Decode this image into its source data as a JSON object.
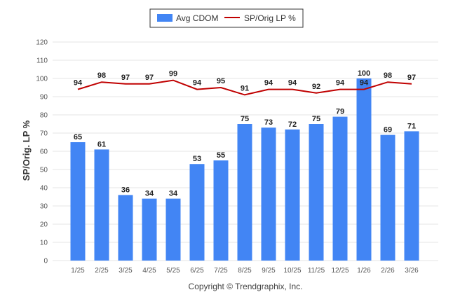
{
  "chart_data": {
    "type": "bar+line",
    "categories": [
      "1/25",
      "2/25",
      "3/25",
      "4/25",
      "5/25",
      "6/25",
      "7/25",
      "8/25",
      "9/25",
      "10/25",
      "11/25",
      "12/25",
      "1/26",
      "2/26",
      "3/26"
    ],
    "series": [
      {
        "name": "Avg CDOM",
        "type": "bar",
        "color": "#4285f4",
        "values": [
          65,
          61,
          36,
          34,
          34,
          53,
          55,
          75,
          73,
          72,
          75,
          79,
          100,
          69,
          71
        ]
      },
      {
        "name": "SP/Orig LP %",
        "type": "line",
        "color": "#c00000",
        "values": [
          94,
          98,
          97,
          97,
          99,
          94,
          95,
          91,
          94,
          94,
          92,
          94,
          94,
          98,
          97
        ]
      }
    ],
    "ylabel": "SP/Orig. LP %",
    "ylim": [
      0,
      120
    ],
    "yticks": [
      0,
      10,
      20,
      30,
      40,
      50,
      60,
      70,
      80,
      90,
      100,
      110,
      120
    ],
    "grid": true,
    "legend_position": "top-center"
  },
  "footer": {
    "copyright": "Copyright © Trendgraphix, Inc."
  }
}
